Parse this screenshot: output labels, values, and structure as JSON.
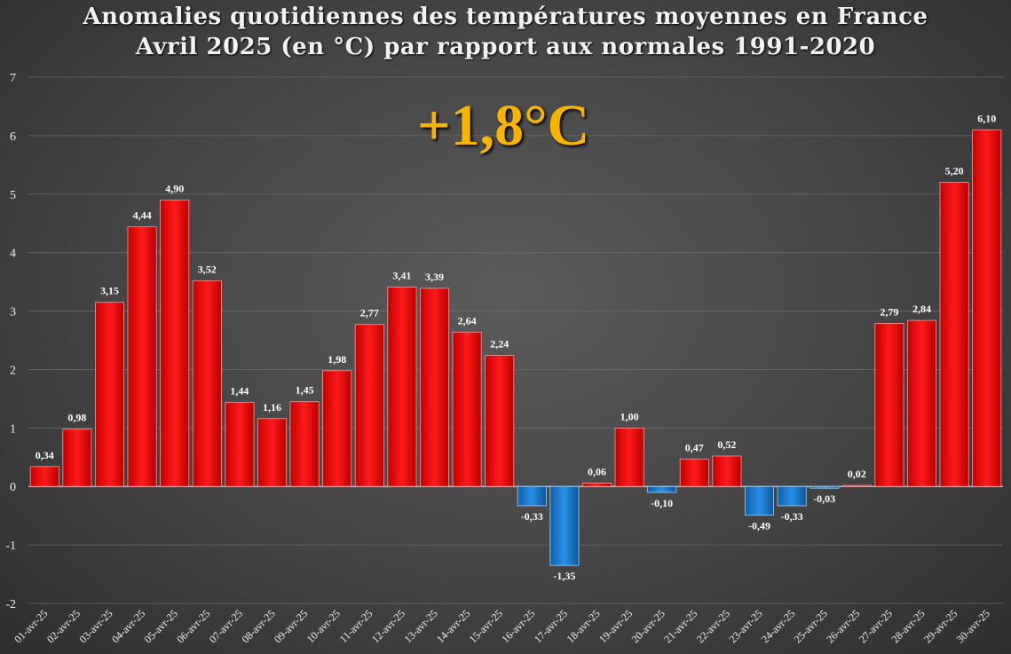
{
  "chart_data": {
    "type": "bar",
    "title": "Anomalies quotidiennes des températures moyennes en France",
    "subtitle": "Avril 2025 (en °C) par rapport aux normales 1991-2020",
    "annotation": "+1,8°C",
    "categories": [
      "01-avr-25",
      "02-avr-25",
      "03-avr-25",
      "04-avr-25",
      "05-avr-25",
      "06-avr-25",
      "07-avr-25",
      "08-avr-25",
      "09-avr-25",
      "10-avr-25",
      "11-avr-25",
      "12-avr-25",
      "13-avr-25",
      "14-avr-25",
      "15-avr-25",
      "16-avr-25",
      "17-avr-25",
      "18-avr-25",
      "19-avr-25",
      "20-avr-25",
      "21-avr-25",
      "22-avr-25",
      "23-avr-25",
      "24-avr-25",
      "25-avr-25",
      "26-avr-25",
      "27-avr-25",
      "28-avr-25",
      "29-avr-25",
      "30-avr-25"
    ],
    "values": [
      0.34,
      0.98,
      3.15,
      4.44,
      4.9,
      3.52,
      1.44,
      1.16,
      1.45,
      1.98,
      2.77,
      3.41,
      3.39,
      2.64,
      2.24,
      -0.33,
      -1.35,
      0.06,
      1.0,
      -0.1,
      0.47,
      0.52,
      -0.49,
      -0.33,
      -0.03,
      0.02,
      2.79,
      2.84,
      5.2,
      6.1
    ],
    "value_labels": [
      "0,34",
      "0,98",
      "3,15",
      "4,44",
      "4,90",
      "3,52",
      "1,44",
      "1,16",
      "1,45",
      "1,98",
      "2,77",
      "3,41",
      "3,39",
      "2,64",
      "2,24",
      "-0,33",
      "-1,35",
      "0,06",
      "1,00",
      "-0,10",
      "0,47",
      "0,52",
      "-0,49",
      "-0,33",
      "-0,03",
      "0,02",
      "2,79",
      "2,84",
      "5,20",
      "6,10"
    ],
    "ylim": [
      -2,
      7
    ],
    "yticks": [
      "-2",
      "-1",
      "0",
      "1",
      "2",
      "3",
      "4",
      "5",
      "6",
      "7"
    ],
    "xlabel": "",
    "ylabel": "",
    "grid": true,
    "legend": "none",
    "colors": {
      "positive": "#ff0000",
      "negative": "#1a7fd4",
      "background": "#444444",
      "annotation": "#f7b500"
    }
  }
}
